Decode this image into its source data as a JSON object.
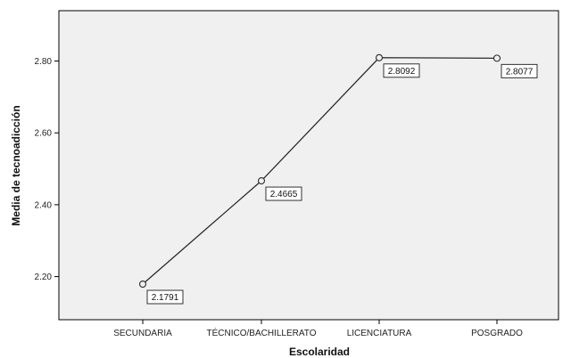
{
  "chart_data": {
    "type": "line",
    "title": "",
    "xlabel": "Escolaridad",
    "ylabel": "Media de tecnoadicción",
    "categories": [
      "SECUNDARIA",
      "TÉCNICO/BACHILLERATO",
      "LICENCIATURA",
      "POSGRADO"
    ],
    "series": [
      {
        "values": [
          2.1791,
          2.4665,
          2.8092,
          2.8077
        ]
      }
    ],
    "data_labels": [
      "2.1791",
      "2.4665",
      "2.8092",
      "2.8077"
    ],
    "ylim": [
      2.08,
      2.94
    ],
    "yticks": [
      2.2,
      2.4,
      2.6,
      2.8
    ],
    "ytick_labels": [
      "2.20",
      "2.40",
      "2.60",
      "2.80"
    ],
    "grid": false,
    "legend": "none",
    "colors": {
      "plot_background": "#f0f0f0",
      "line": "#2b2b2b",
      "marker_fill": "#f0f0f0"
    }
  }
}
